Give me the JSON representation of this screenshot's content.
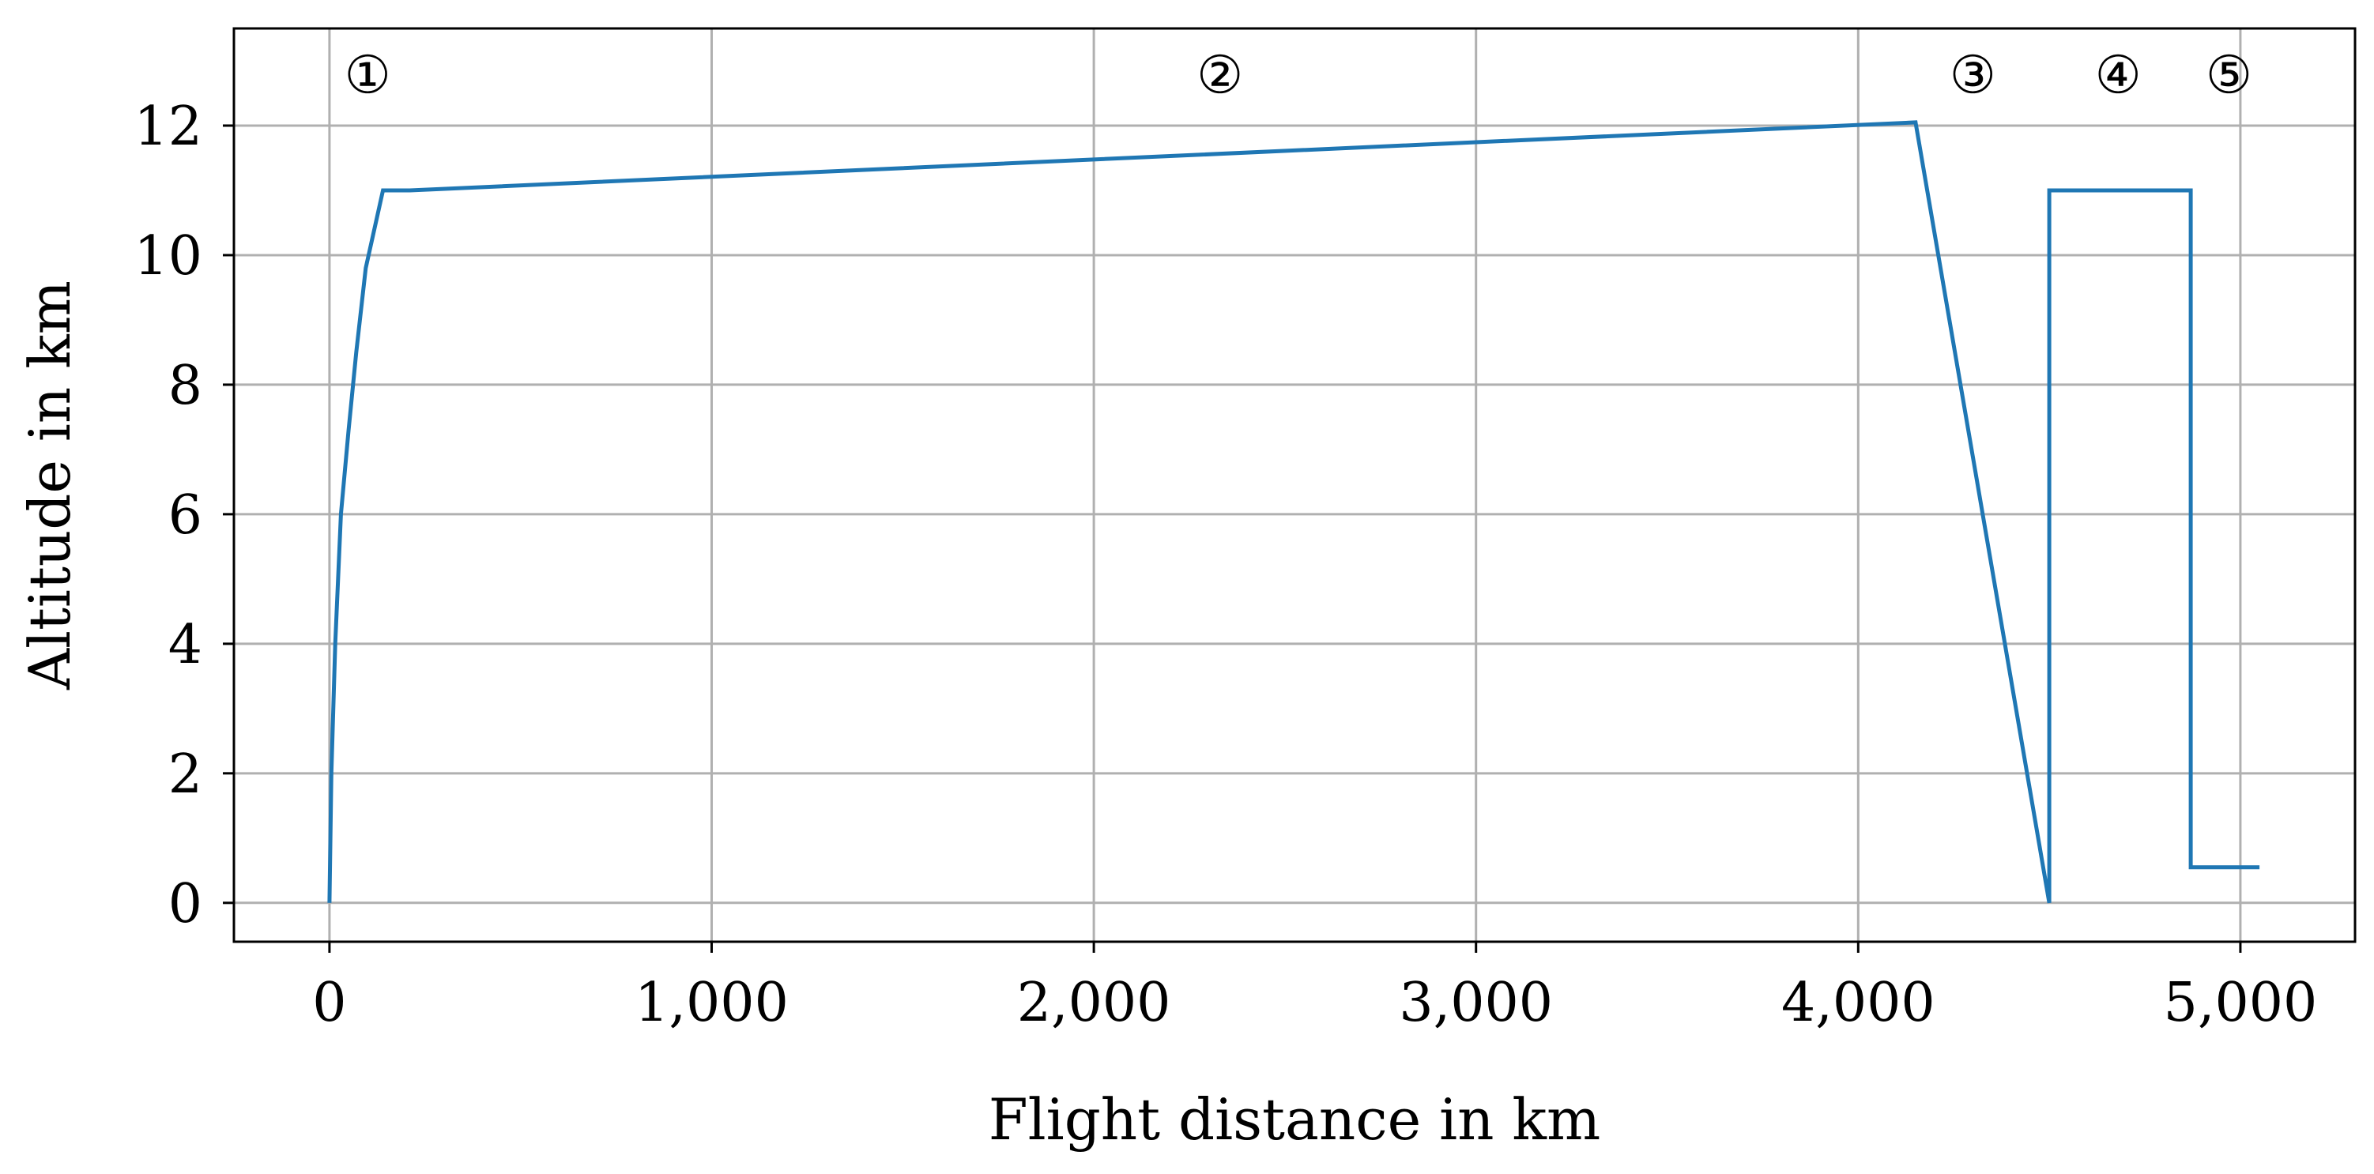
{
  "chart_data": {
    "type": "line",
    "xlabel": "Flight distance in km",
    "ylabel": "Altitude in km",
    "xlim": [
      -250,
      5300
    ],
    "ylim": [
      -0.6,
      13.5
    ],
    "xticks": [
      0,
      1000,
      2000,
      3000,
      4000,
      5000
    ],
    "xtick_labels": [
      "0",
      "1,000",
      "2,000",
      "3,000",
      "4,000",
      "5,000"
    ],
    "yticks": [
      0,
      2,
      4,
      6,
      8,
      10,
      12
    ],
    "ytick_labels": [
      "0",
      "2",
      "4",
      "6",
      "8",
      "10",
      "12"
    ],
    "grid": true,
    "line_color": "#1f77b4",
    "series": [
      {
        "x": [
          0,
          5,
          15,
          30,
          50,
          70,
          95,
          140,
          210,
          4150,
          4500,
          4500,
          4870,
          4870,
          5050
        ],
        "y": [
          0,
          2,
          4,
          6,
          7.3,
          8.5,
          9.8,
          11.0,
          11.0,
          12.05,
          0,
          11.0,
          11.0,
          0.55,
          0.55
        ]
      }
    ],
    "annotations": [
      {
        "text": "①",
        "x": 100,
        "y": 12.8
      },
      {
        "text": "②",
        "x": 2330,
        "y": 12.8
      },
      {
        "text": "③",
        "x": 4300,
        "y": 12.8
      },
      {
        "text": "④",
        "x": 4680,
        "y": 12.8
      },
      {
        "text": "⑤",
        "x": 4970,
        "y": 12.8
      }
    ]
  }
}
